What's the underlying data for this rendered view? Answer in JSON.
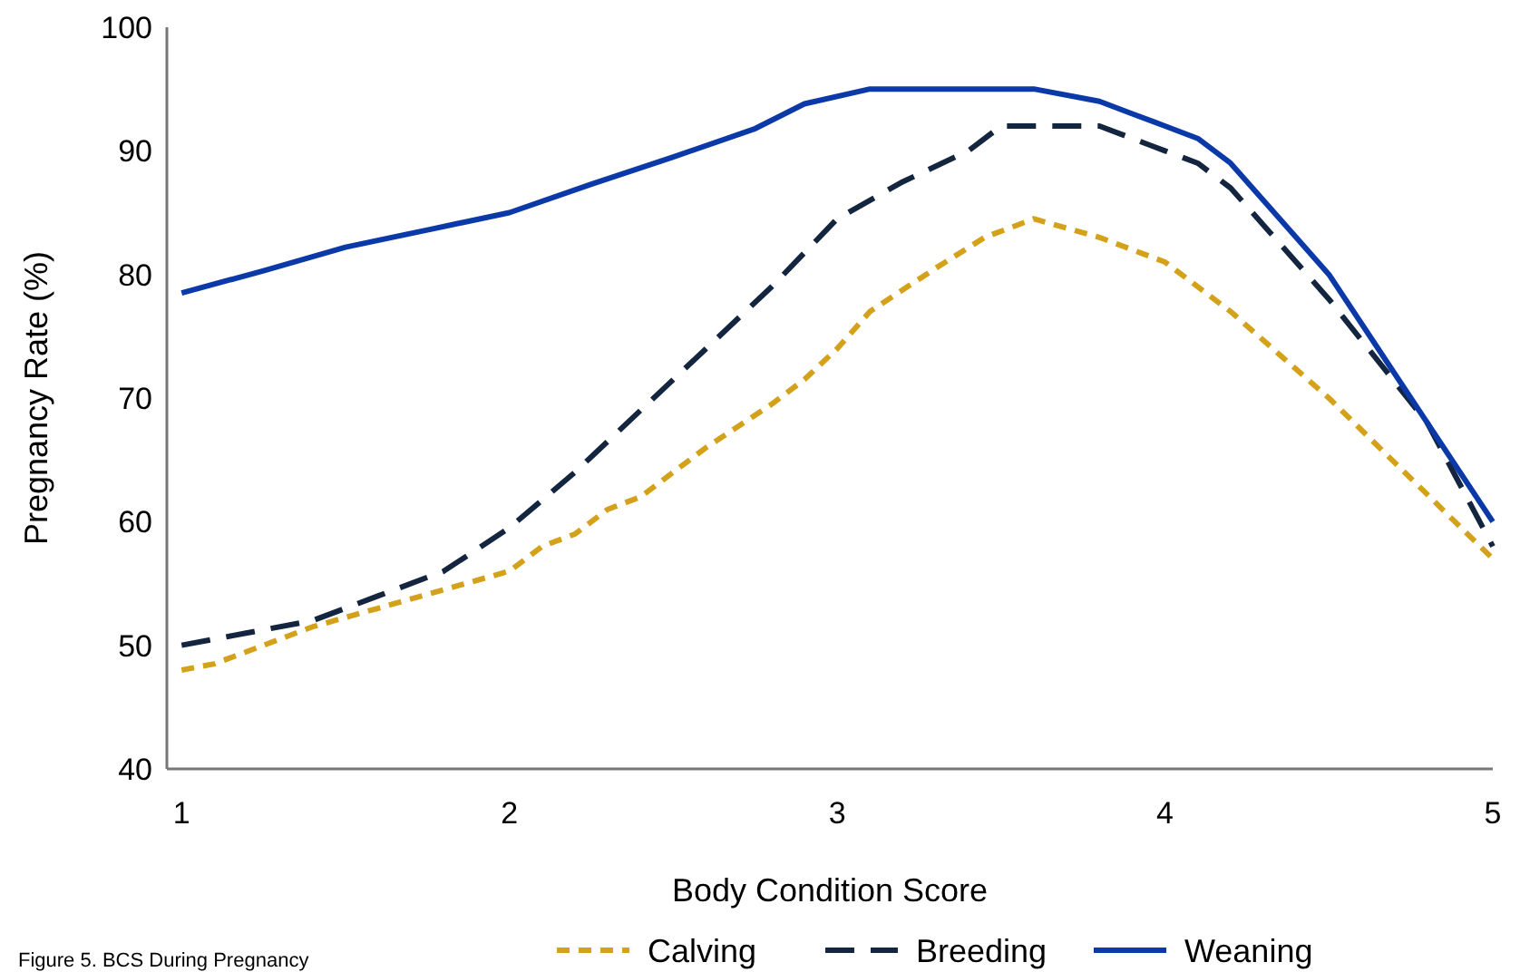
{
  "chart_data": {
    "type": "line",
    "xlabel": "Body Condition Score",
    "ylabel": "Pregnancy Rate (%)",
    "annotations": [
      "Figure 5. BCS During Pregnancy"
    ],
    "xlim": [
      0.955,
      5
    ],
    "xticks": [
      1,
      2,
      3,
      4,
      5
    ],
    "ylim": [
      40,
      100
    ],
    "yticks": [
      40,
      50,
      60,
      70,
      80,
      90,
      100
    ],
    "grid": false,
    "legend": "bottom",
    "marker": "none",
    "series": [
      {
        "name": "Calving",
        "color": "#d4a21a",
        "line_style": "dotted",
        "x": [
          1,
          1.1,
          1.2,
          1.4,
          1.6,
          1.8,
          2,
          2.1,
          2.2,
          2.3,
          2.4,
          2.6,
          2.8,
          2.9,
          3,
          3.1,
          3.3,
          3.45,
          3.6,
          3.8,
          4,
          4.2,
          4.5,
          5
        ],
        "values": [
          48,
          48.5,
          49.5,
          51.5,
          53,
          54.5,
          56,
          58,
          59,
          61,
          62,
          66,
          69.5,
          71.5,
          74,
          77,
          80.5,
          83,
          84.5,
          83,
          81,
          77,
          70,
          57
        ]
      },
      {
        "name": "Breeding",
        "color": "#14253f",
        "line_style": "dashed",
        "x": [
          1,
          1.2,
          1.4,
          1.6,
          1.8,
          2,
          2.2,
          2.4,
          2.6,
          2.8,
          3,
          3.2,
          3.4,
          3.5,
          3.8,
          4,
          4.1,
          4.2,
          4.5,
          4.8,
          5
        ],
        "values": [
          50,
          51,
          52,
          54,
          56,
          59.5,
          64,
          69,
          74,
          79,
          84.5,
          87.5,
          90,
          92,
          92,
          90,
          89,
          87,
          78,
          68,
          58
        ]
      },
      {
        "name": "Weaning",
        "color": "#0b3aa8",
        "line_style": "solid",
        "x": [
          1,
          1.25,
          1.5,
          1.75,
          2,
          2.25,
          2.5,
          2.75,
          2.9,
          3.1,
          3.6,
          3.8,
          3.9,
          4,
          4.1,
          4.2,
          4.5,
          5
        ],
        "values": [
          78.5,
          80.3,
          82.2,
          83.6,
          85,
          87.3,
          89.5,
          91.8,
          93.8,
          95,
          95,
          94,
          93,
          92,
          91,
          89,
          80,
          60
        ]
      }
    ]
  }
}
